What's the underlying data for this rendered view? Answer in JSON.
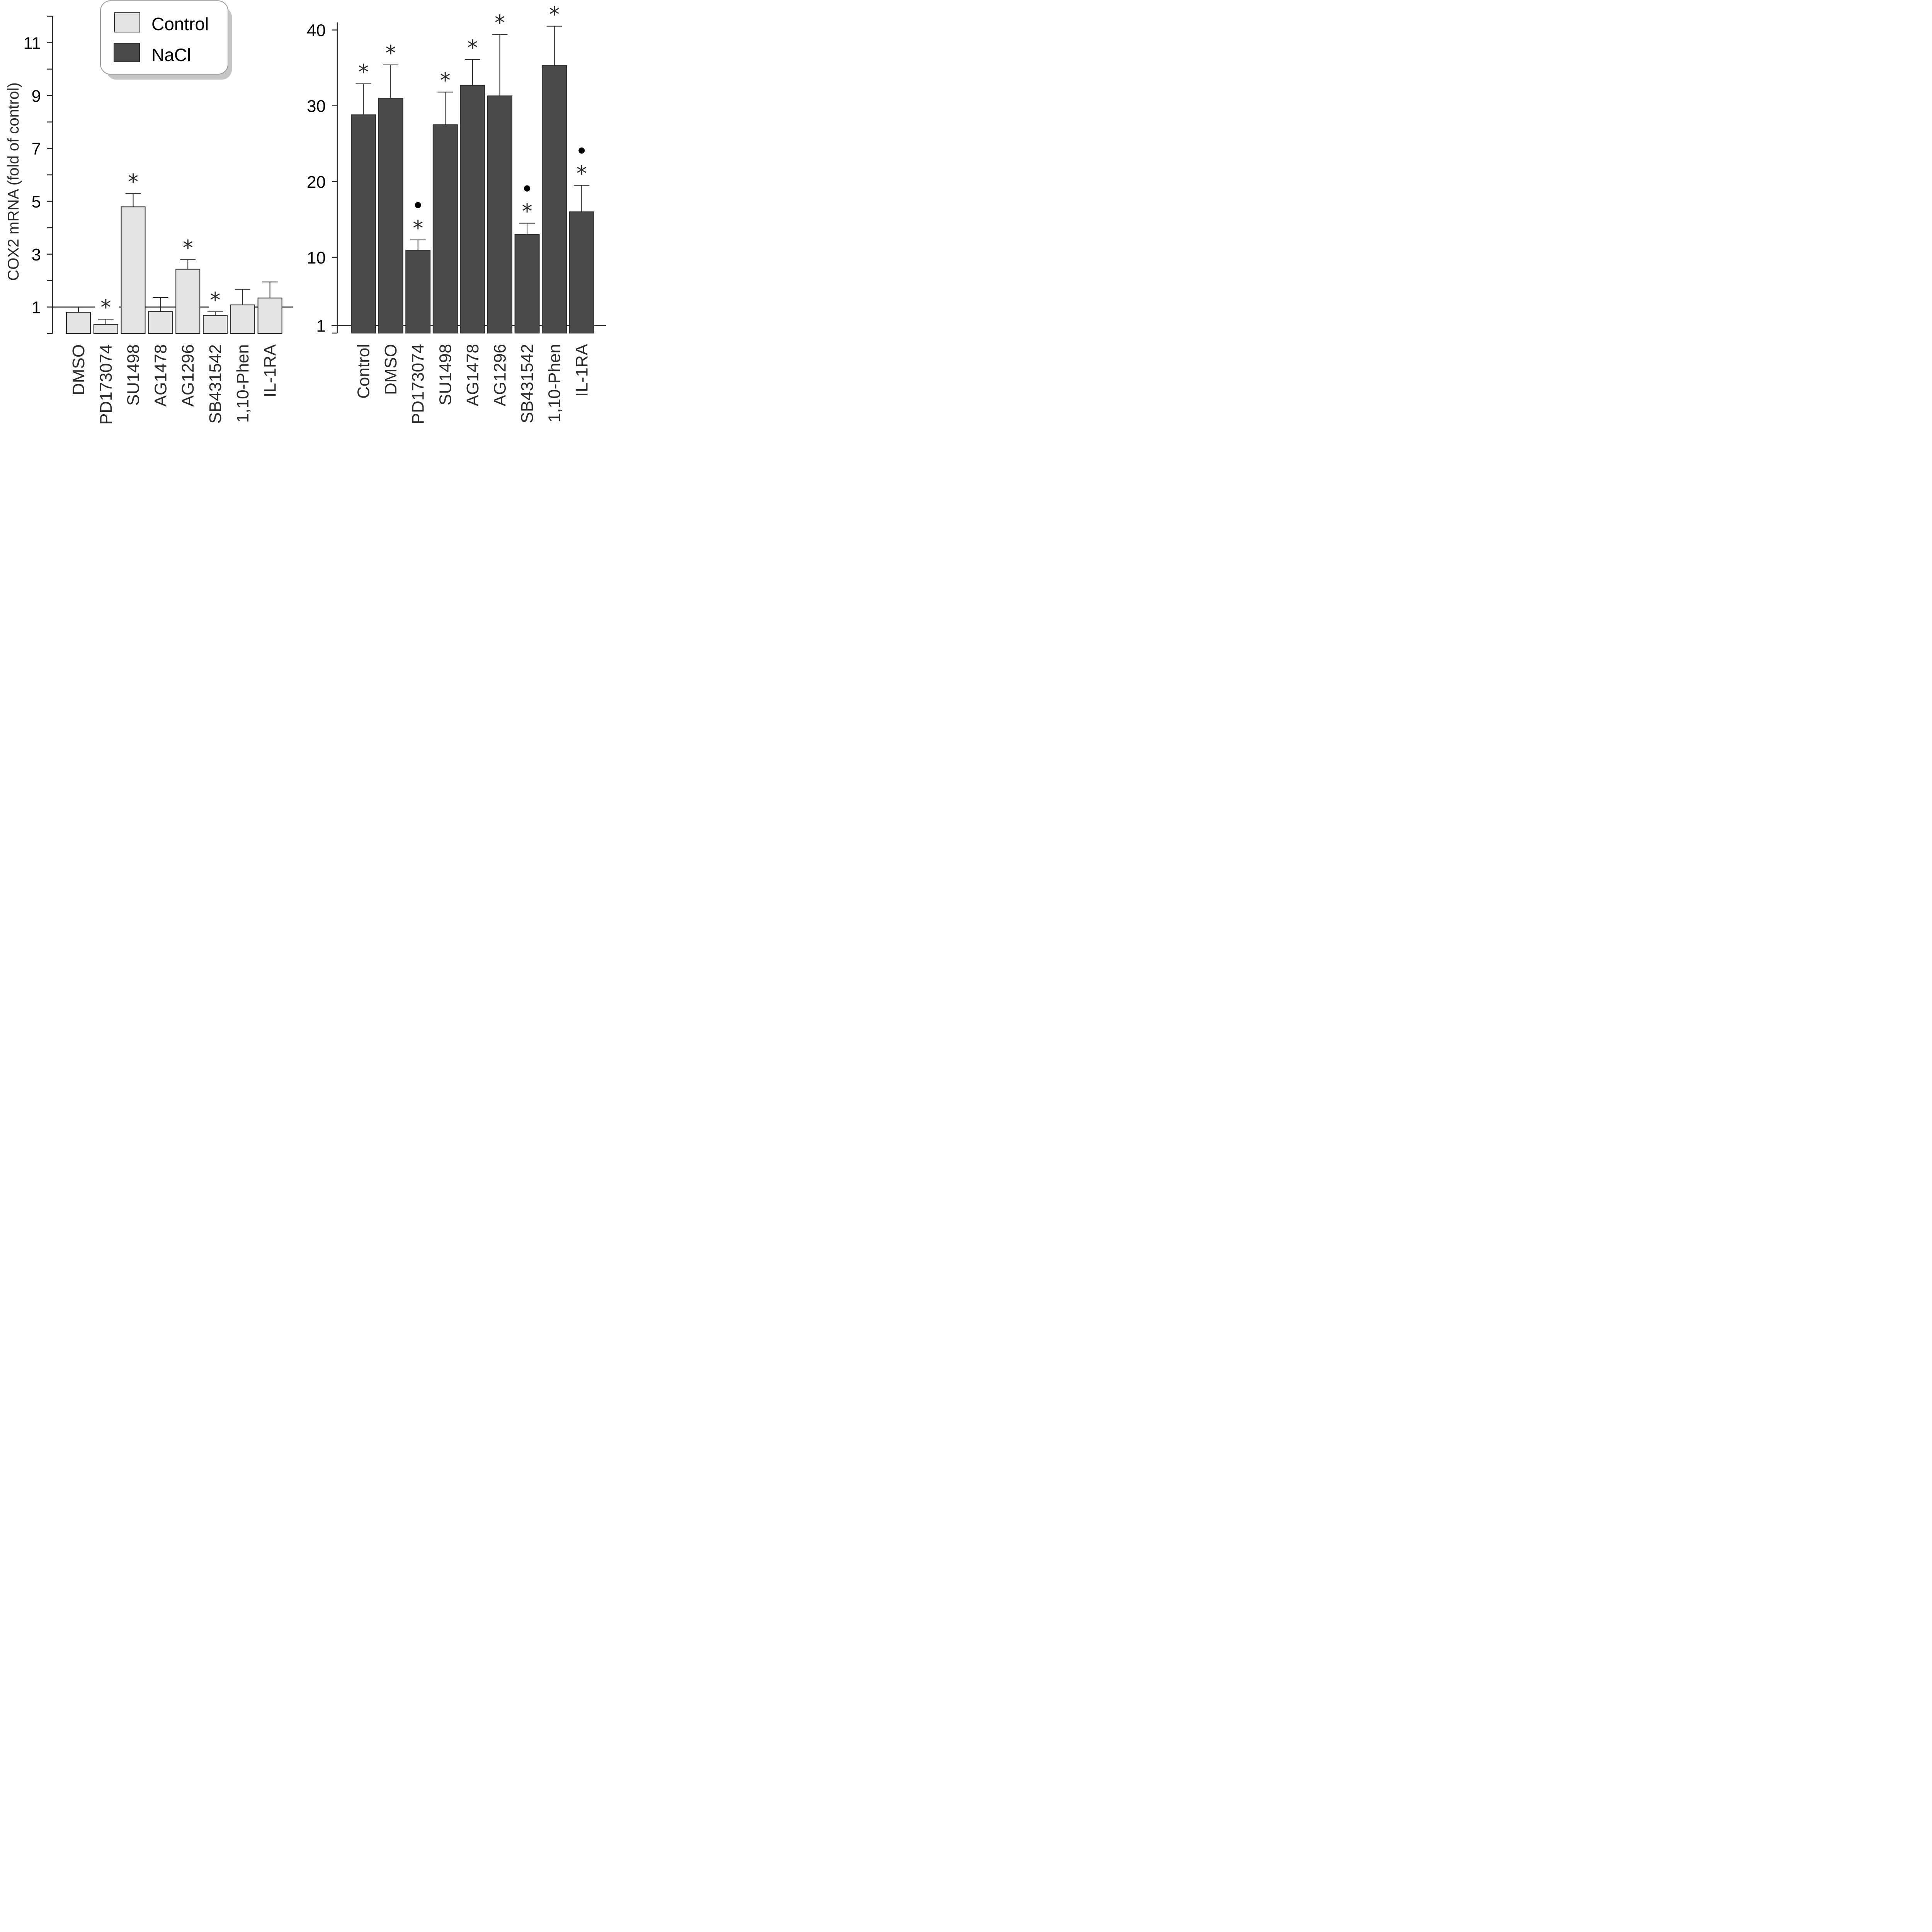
{
  "chart_data": [
    {
      "type": "bar",
      "panel": "left",
      "title": "",
      "xlabel": "",
      "ylabel": "COX2 mRNA (fold of control)",
      "ylim": [
        0,
        12
      ],
      "yticks": [
        1,
        3,
        5,
        7,
        9,
        11
      ],
      "minor_yticks": [
        2,
        4,
        6,
        8,
        10,
        12
      ],
      "reference_line": 1,
      "series_name": "Control",
      "categories": [
        "DMSO",
        "PD173074",
        "SU1498",
        "AG1478",
        "AG1296",
        "SB431542",
        "1,10-Phen",
        "IL-1RA"
      ],
      "values": [
        0.8,
        0.34,
        4.79,
        0.83,
        2.43,
        0.68,
        1.08,
        1.34
      ],
      "error_upper": [
        1.0,
        0.54,
        5.29,
        1.36,
        2.79,
        0.82,
        1.67,
        1.95
      ],
      "significance_star": [
        false,
        true,
        true,
        false,
        true,
        true,
        false,
        false
      ],
      "significance_dot": [
        false,
        false,
        false,
        false,
        false,
        false,
        false,
        false
      ],
      "color": "#e4e4e4"
    },
    {
      "type": "bar",
      "panel": "right",
      "title": "",
      "xlabel": "",
      "ylabel": "",
      "ylim": [
        0,
        41
      ],
      "yticks": [
        1,
        10,
        20,
        30,
        40
      ],
      "tick_labels": [
        "1",
        "10",
        "20",
        "30",
        "40"
      ],
      "reference_line": 1,
      "series_name": "NaCl",
      "categories": [
        "Control",
        "DMSO",
        "PD173074",
        "SU1498",
        "AG1478",
        "AG1296",
        "SB431542",
        "1,10-Phen",
        "IL-1RA"
      ],
      "values": [
        28.8,
        31.0,
        10.9,
        27.5,
        32.7,
        31.3,
        13.0,
        35.3,
        16.0
      ],
      "error_upper": [
        32.9,
        35.4,
        12.3,
        31.8,
        36.1,
        39.4,
        14.5,
        40.5,
        19.5
      ],
      "significance_star": [
        true,
        true,
        true,
        true,
        true,
        true,
        true,
        true,
        true
      ],
      "significance_dot": [
        false,
        false,
        true,
        false,
        false,
        false,
        true,
        false,
        true
      ],
      "color": "#4a4a4a"
    }
  ],
  "legend": {
    "placement": "top-left-center",
    "items": [
      {
        "label": "Control",
        "color": "#e4e4e4"
      },
      {
        "label": "NaCl",
        "color": "#4a4a4a"
      }
    ]
  },
  "symbols": {
    "star": "*",
    "dot": "●"
  }
}
